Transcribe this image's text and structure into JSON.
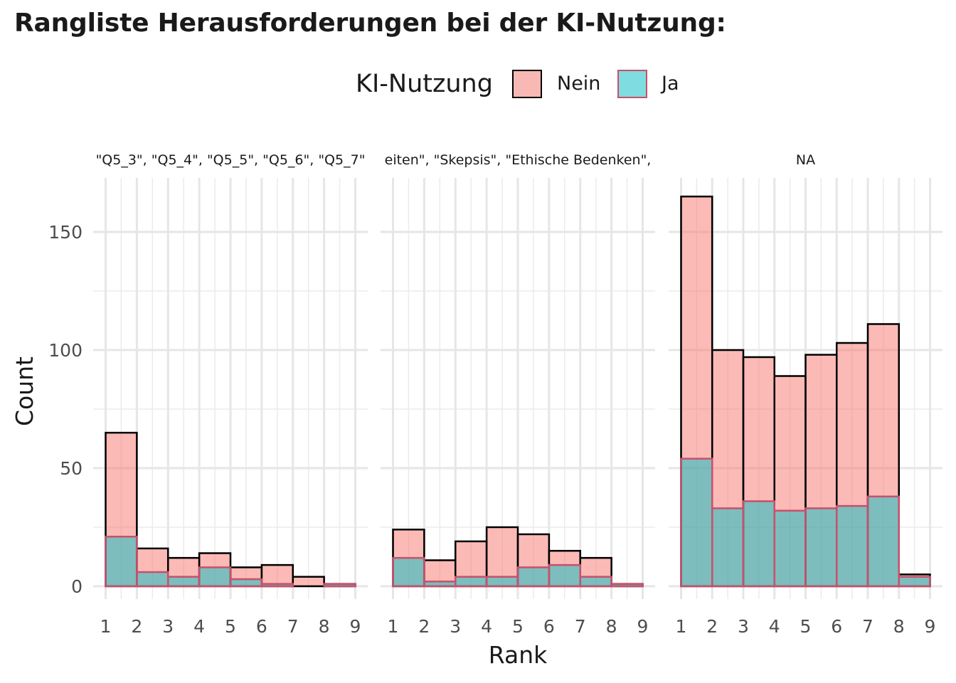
{
  "title": "Rangliste Herausforderungen bei der KI-Nutzung:",
  "legend": {
    "title": "KI-Nutzung",
    "items": [
      {
        "label": "Nein",
        "fill": "#f8b8b3",
        "stroke": "#000000"
      },
      {
        "label": "Ja",
        "fill": "#7fdcdf",
        "stroke": "#c8506c"
      }
    ],
    "placement": "top"
  },
  "chart_data": {
    "type": "bar",
    "stacked": false,
    "xlabel": "Rank",
    "ylabel": "Count",
    "x_ticks": [
      "1",
      "2",
      "3",
      "4",
      "5",
      "6",
      "7",
      "8",
      "9"
    ],
    "y_ticks": [
      "0",
      "50",
      "100",
      "150"
    ],
    "ylim": [
      0,
      170
    ],
    "xlim": [
      1,
      9
    ],
    "grid": true,
    "facets": [
      {
        "label": "\"Q5_3\", \"Q5_4\", \"Q5_5\", \"Q5_6\", \"Q5_7\"",
        "bins": [
          [
            1,
            2
          ],
          [
            2,
            3
          ],
          [
            3,
            4
          ],
          [
            4,
            5
          ],
          [
            5,
            6
          ],
          [
            6,
            7
          ],
          [
            7,
            8
          ],
          [
            8,
            9
          ]
        ],
        "series": [
          {
            "name": "Nein",
            "values": [
              65,
              16,
              12,
              14,
              8,
              9,
              4,
              1
            ]
          },
          {
            "name": "Ja",
            "values": [
              21,
              6,
              4,
              8,
              3,
              1,
              0,
              1
            ]
          }
        ]
      },
      {
        "label": "eiten\", \"Skepsis\", \"Ethische Bedenken\",",
        "bins": [
          [
            1,
            2
          ],
          [
            2,
            3
          ],
          [
            3,
            4
          ],
          [
            4,
            5
          ],
          [
            5,
            6
          ],
          [
            6,
            7
          ],
          [
            7,
            8
          ],
          [
            8,
            9
          ]
        ],
        "series": [
          {
            "name": "Nein",
            "values": [
              24,
              11,
              19,
              25,
              22,
              15,
              12,
              1
            ]
          },
          {
            "name": "Ja",
            "values": [
              12,
              2,
              4,
              4,
              8,
              9,
              4,
              1
            ]
          }
        ]
      },
      {
        "label": "NA",
        "bins": [
          [
            1,
            2
          ],
          [
            2,
            3
          ],
          [
            3,
            4
          ],
          [
            4,
            5
          ],
          [
            5,
            6
          ],
          [
            6,
            7
          ],
          [
            7,
            8
          ],
          [
            8,
            9
          ]
        ],
        "series": [
          {
            "name": "Nein",
            "values": [
              165,
              100,
              97,
              89,
              98,
              103,
              111,
              5
            ]
          },
          {
            "name": "Ja",
            "values": [
              54,
              33,
              36,
              32,
              33,
              34,
              38,
              4
            ]
          }
        ]
      }
    ]
  }
}
